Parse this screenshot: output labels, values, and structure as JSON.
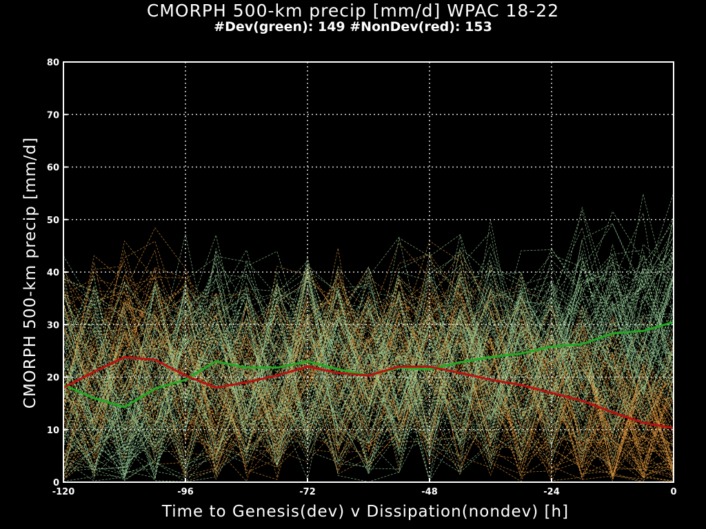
{
  "chart_data": {
    "type": "line",
    "title": "CMORPH 500-km precip [mm/d] WPAC 18-22",
    "subtitle": "#Dev(green): 149 #NonDev(red): 153",
    "xlabel": "Time to Genesis(dev) v Dissipation(nondev) [h]",
    "ylabel": "CMORPH 500-km precip [mm/d]",
    "xlim": [
      -120,
      0
    ],
    "ylim": [
      0,
      80
    ],
    "xticks": [
      -120,
      -96,
      -72,
      -48,
      -24,
      0
    ],
    "yticks": [
      0,
      10,
      20,
      30,
      40,
      50,
      60,
      70,
      80
    ],
    "grid": true,
    "background": "#000000",
    "colors": {
      "dev_mean": "#22aa22",
      "nondev_mean": "#bb1111",
      "dev_members": "#9cd49c",
      "nondev_members": "#e09a40",
      "grid": "#dddddd"
    },
    "x": [
      -120,
      -114,
      -108,
      -102,
      -96,
      -90,
      -84,
      -78,
      -72,
      -66,
      -60,
      -54,
      -48,
      -42,
      -36,
      -30,
      -24,
      -18,
      -12,
      -6,
      0
    ],
    "series": [
      {
        "values": [
          18.5,
          16.0,
          14.3,
          17.8,
          19.5,
          23.0,
          21.8,
          21.8,
          23.0,
          21.5,
          20.3,
          21.8,
          21.5,
          22.8,
          23.8,
          24.5,
          25.8,
          26.3,
          28.3,
          28.8,
          30.5
        ]
      },
      {
        "values": [
          18.0,
          21.0,
          23.8,
          23.3,
          20.3,
          18.0,
          19.0,
          20.3,
          22.0,
          20.8,
          20.3,
          22.0,
          22.0,
          20.8,
          19.5,
          18.5,
          17.0,
          15.5,
          13.3,
          11.3,
          10.3
        ]
      }
    ]
  }
}
